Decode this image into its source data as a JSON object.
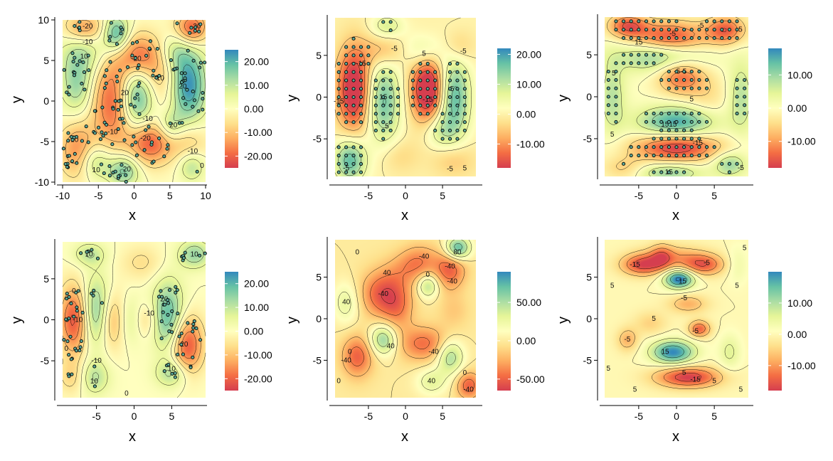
{
  "colors": {
    "scale": [
      "#d53e4f",
      "#f46d43",
      "#fdae61",
      "#fee08b",
      "#ffffbf",
      "#e6f598",
      "#abdda4",
      "#66c2a5",
      "#3288bd"
    ],
    "contour_line": "#000000",
    "point_fill": "#5ba897",
    "point_stroke": "#000000"
  },
  "chart_data": [
    {
      "type": "heatmap",
      "xlabel": "x",
      "ylabel": "y",
      "xlim": [
        -10,
        10
      ],
      "ylim": [
        -10,
        10
      ],
      "xticks": [
        -10,
        -5,
        0,
        5,
        10
      ],
      "yticks": [
        -10,
        -5,
        0,
        5,
        10
      ],
      "xtick_labels": [
        "-10",
        "-5",
        "0",
        "5",
        "10"
      ],
      "ytick_labels": [
        "-10",
        "-5",
        "0",
        "5",
        "10"
      ],
      "legend": {
        "range": [
          -25,
          25
        ],
        "ticks": [
          20,
          10,
          0,
          -10,
          -20
        ],
        "labels": [
          "20.00",
          "10.00",
          "0.00",
          "-10.00",
          "-20.00"
        ]
      },
      "points": "scattered",
      "contour_labels": [
        {
          "x": -6.5,
          "y": 9.2,
          "text": "-20"
        },
        {
          "x": -6.5,
          "y": 7.3,
          "text": "-10"
        },
        {
          "x": -7.0,
          "y": 5.5,
          "text": "10"
        },
        {
          "x": 0.3,
          "y": 5.2,
          "text": "-20"
        },
        {
          "x": 3.5,
          "y": 2.8,
          "text": "-10"
        },
        {
          "x": -1.3,
          "y": 1.0,
          "text": "20"
        },
        {
          "x": 6.8,
          "y": 1.8,
          "text": "20"
        },
        {
          "x": 1.9,
          "y": -2.2,
          "text": "-10"
        },
        {
          "x": -3.0,
          "y": -3.8,
          "text": "-10"
        },
        {
          "x": 1.6,
          "y": -4.6,
          "text": "-20"
        },
        {
          "x": -8.5,
          "y": -4.8,
          "text": "-10"
        },
        {
          "x": -5.3,
          "y": -8.5,
          "text": "10"
        },
        {
          "x": -1.0,
          "y": -8.4,
          "text": "20"
        },
        {
          "x": 8.2,
          "y": -6.2,
          "text": "-10"
        },
        {
          "x": 5.5,
          "y": -3.0,
          "text": "20"
        },
        {
          "x": 9.5,
          "y": -8.0,
          "text": "0"
        },
        {
          "x": 8.8,
          "y": 9.2,
          "text": "20"
        }
      ]
    },
    {
      "type": "heatmap",
      "xlabel": "x",
      "ylabel": "y",
      "xlim": [
        -9.5,
        9.5
      ],
      "ylim": [
        -9.5,
        9.5
      ],
      "xticks": [
        -5,
        0,
        5
      ],
      "yticks": [
        -5,
        0,
        5
      ],
      "xtick_labels": [
        "-5",
        "0",
        "5"
      ],
      "ytick_labels": [
        "-5",
        "0",
        "5"
      ],
      "legend": {
        "range": [
          -18,
          22
        ],
        "ticks": [
          20,
          10,
          0,
          -10
        ],
        "labels": [
          "20.00",
          "10.00",
          "0.00",
          "-10.00"
        ]
      },
      "points": "grid",
      "contour_labels": [
        {
          "x": -6.0,
          "y": 4.0,
          "text": "-15"
        },
        {
          "x": -1.5,
          "y": 5.8,
          "text": "-5"
        },
        {
          "x": 2.5,
          "y": 5.2,
          "text": "5"
        },
        {
          "x": 7.8,
          "y": 5.5,
          "text": "-5"
        },
        {
          "x": -3.0,
          "y": 0.0,
          "text": "15"
        },
        {
          "x": 3.0,
          "y": -0.3,
          "text": "-15"
        },
        {
          "x": 6.3,
          "y": 1.0,
          "text": "5"
        },
        {
          "x": -2.5,
          "y": -3.5,
          "text": "5"
        },
        {
          "x": -9.0,
          "y": -0.5,
          "text": "-15"
        },
        {
          "x": -8.0,
          "y": -8.5,
          "text": "-5"
        },
        {
          "x": 6.0,
          "y": -8.6,
          "text": "-5"
        },
        {
          "x": 8.0,
          "y": -8.5,
          "text": "5"
        }
      ]
    },
    {
      "type": "heatmap",
      "xlabel": "x",
      "ylabel": "y",
      "xlim": [
        -9.5,
        9.5
      ],
      "ylim": [
        -9.5,
        9.5
      ],
      "xticks": [
        -5,
        0,
        5
      ],
      "yticks": [
        -5,
        0,
        5
      ],
      "xtick_labels": [
        "-5",
        "0",
        "5"
      ],
      "ytick_labels": [
        "-5",
        "0",
        "5"
      ],
      "legend": {
        "range": [
          -18,
          18
        ],
        "ticks": [
          10,
          0,
          -10
        ],
        "labels": [
          "10.00",
          "0.00",
          "-10.00"
        ]
      },
      "points": "grid",
      "contour_labels": [
        {
          "x": -0.5,
          "y": 7.5,
          "text": "-5"
        },
        {
          "x": 3.2,
          "y": 8.5,
          "text": "-5"
        },
        {
          "x": 8.3,
          "y": 8.0,
          "text": "-5"
        },
        {
          "x": -5.0,
          "y": 6.5,
          "text": "15"
        },
        {
          "x": 0.5,
          "y": 3.0,
          "text": "-5-5"
        },
        {
          "x": -8.3,
          "y": 2.8,
          "text": "5"
        },
        {
          "x": 2.0,
          "y": -0.3,
          "text": "5"
        },
        {
          "x": -1.0,
          "y": -3.3,
          "text": "1515"
        },
        {
          "x": 2.8,
          "y": -5.5,
          "text": "-15"
        },
        {
          "x": -1.0,
          "y": -9.0,
          "text": "15"
        },
        {
          "x": 8.5,
          "y": -8.5,
          "text": "-5"
        },
        {
          "x": -8.5,
          "y": -4.5,
          "text": "5"
        }
      ]
    },
    {
      "type": "heatmap",
      "xlabel": "x",
      "ylabel": "y",
      "xlim": [
        -9.5,
        9.5
      ],
      "ylim": [
        -9.5,
        9.5
      ],
      "xticks": [
        -5,
        0,
        5
      ],
      "yticks": [
        -5,
        0,
        5
      ],
      "xtick_labels": [
        "-5",
        "0",
        "5"
      ],
      "ytick_labels": [
        "-5",
        "0",
        "5"
      ],
      "legend": {
        "range": [
          -25,
          25
        ],
        "ticks": [
          20,
          10,
          0,
          -10,
          -20
        ],
        "labels": [
          "20.00",
          "10.00",
          "0.00",
          "-10.00",
          "-20.00"
        ]
      },
      "points": "scattered",
      "contour_labels": [
        {
          "x": -6.0,
          "y": 8.0,
          "text": "10"
        },
        {
          "x": 8.0,
          "y": 8.0,
          "text": "10"
        },
        {
          "x": -8.0,
          "y": 3.5,
          "text": "0"
        },
        {
          "x": 4.0,
          "y": 2.5,
          "text": "20"
        },
        {
          "x": -7.5,
          "y": 0.0,
          "text": "-10"
        },
        {
          "x": 2.0,
          "y": 0.8,
          "text": "-10"
        },
        {
          "x": -5.0,
          "y": -5.0,
          "text": "-10"
        },
        {
          "x": 6.5,
          "y": -3.0,
          "text": "-20"
        },
        {
          "x": -5.3,
          "y": -7.5,
          "text": "10"
        },
        {
          "x": -9.0,
          "y": -3.5,
          "text": "0"
        },
        {
          "x": -1.0,
          "y": -9.0,
          "text": "0"
        },
        {
          "x": 5.0,
          "y": -6.0,
          "text": "10"
        }
      ]
    },
    {
      "type": "heatmap",
      "xlabel": "x",
      "ylabel": "y",
      "xlim": [
        -9.5,
        9.5
      ],
      "ylim": [
        -9.5,
        9.5
      ],
      "xticks": [
        -5,
        0,
        5
      ],
      "yticks": [
        -5,
        0,
        5
      ],
      "xtick_labels": [
        "-5",
        "0",
        "5"
      ],
      "ytick_labels": [
        "-5",
        "0",
        "5"
      ],
      "legend": {
        "range": [
          -65,
          90
        ],
        "ticks": [
          50,
          0,
          -50
        ],
        "labels": [
          "50.00",
          "0.00",
          "-50.00"
        ]
      },
      "points": "none",
      "contour_labels": [
        {
          "x": -6.5,
          "y": 8.0,
          "text": "0"
        },
        {
          "x": 2.5,
          "y": 7.5,
          "text": "-40"
        },
        {
          "x": 7.0,
          "y": 8.0,
          "text": "80"
        },
        {
          "x": 6.0,
          "y": 6.3,
          "text": "-40"
        },
        {
          "x": -2.5,
          "y": 5.5,
          "text": "40"
        },
        {
          "x": 3.0,
          "y": 5.3,
          "text": "0"
        },
        {
          "x": -3.0,
          "y": 3.0,
          "text": "-40"
        },
        {
          "x": 6.3,
          "y": 4.5,
          "text": "-40"
        },
        {
          "x": -8.0,
          "y": 2.0,
          "text": "40"
        },
        {
          "x": -2.0,
          "y": -3.3,
          "text": "40"
        },
        {
          "x": -8.0,
          "y": -5.0,
          "text": "-40"
        },
        {
          "x": 3.8,
          "y": -4.0,
          "text": "-40"
        },
        {
          "x": 8.0,
          "y": -6.5,
          "text": "0"
        },
        {
          "x": 3.5,
          "y": -7.5,
          "text": "40"
        },
        {
          "x": 8.5,
          "y": -8.5,
          "text": "-40"
        },
        {
          "x": -9.0,
          "y": -7.5,
          "text": "0"
        },
        {
          "x": -7.5,
          "y": -4.0,
          "text": "0"
        }
      ]
    },
    {
      "type": "heatmap",
      "xlabel": "x",
      "ylabel": "y",
      "xlim": [
        -9.5,
        9.5
      ],
      "ylim": [
        -9.5,
        9.5
      ],
      "xticks": [
        -5,
        0,
        5
      ],
      "yticks": [
        -5,
        0,
        5
      ],
      "xtick_labels": [
        "-5",
        "0",
        "5"
      ],
      "ytick_labels": [
        "-5",
        "0",
        "5"
      ],
      "legend": {
        "range": [
          -18,
          20
        ],
        "ticks": [
          10,
          0,
          -10
        ],
        "labels": [
          "10.00",
          "0.00",
          "-10.00"
        ]
      },
      "points": "none",
      "contour_labels": [
        {
          "x": -5.5,
          "y": 6.5,
          "text": "-15"
        },
        {
          "x": 4.0,
          "y": 6.7,
          "text": "-5"
        },
        {
          "x": 9.0,
          "y": 8.5,
          "text": "5"
        },
        {
          "x": 0.8,
          "y": 4.5,
          "text": "15"
        },
        {
          "x": 1.0,
          "y": 2.5,
          "text": "-5"
        },
        {
          "x": -8.5,
          "y": 4.0,
          "text": "5"
        },
        {
          "x": 8.0,
          "y": 4.0,
          "text": "5"
        },
        {
          "x": -3.0,
          "y": 0.0,
          "text": "5"
        },
        {
          "x": 2.5,
          "y": -1.5,
          "text": "-5"
        },
        {
          "x": -6.5,
          "y": -2.5,
          "text": "-5"
        },
        {
          "x": -1.5,
          "y": -4.0,
          "text": "15"
        },
        {
          "x": 1.0,
          "y": -6.5,
          "text": "5"
        },
        {
          "x": 2.5,
          "y": -7.3,
          "text": "-15"
        },
        {
          "x": -5.5,
          "y": -8.5,
          "text": "5"
        },
        {
          "x": 5.0,
          "y": -7.5,
          "text": "5"
        },
        {
          "x": -9.0,
          "y": -6.0,
          "text": "5"
        },
        {
          "x": 8.5,
          "y": -8.5,
          "text": "5"
        }
      ]
    }
  ]
}
